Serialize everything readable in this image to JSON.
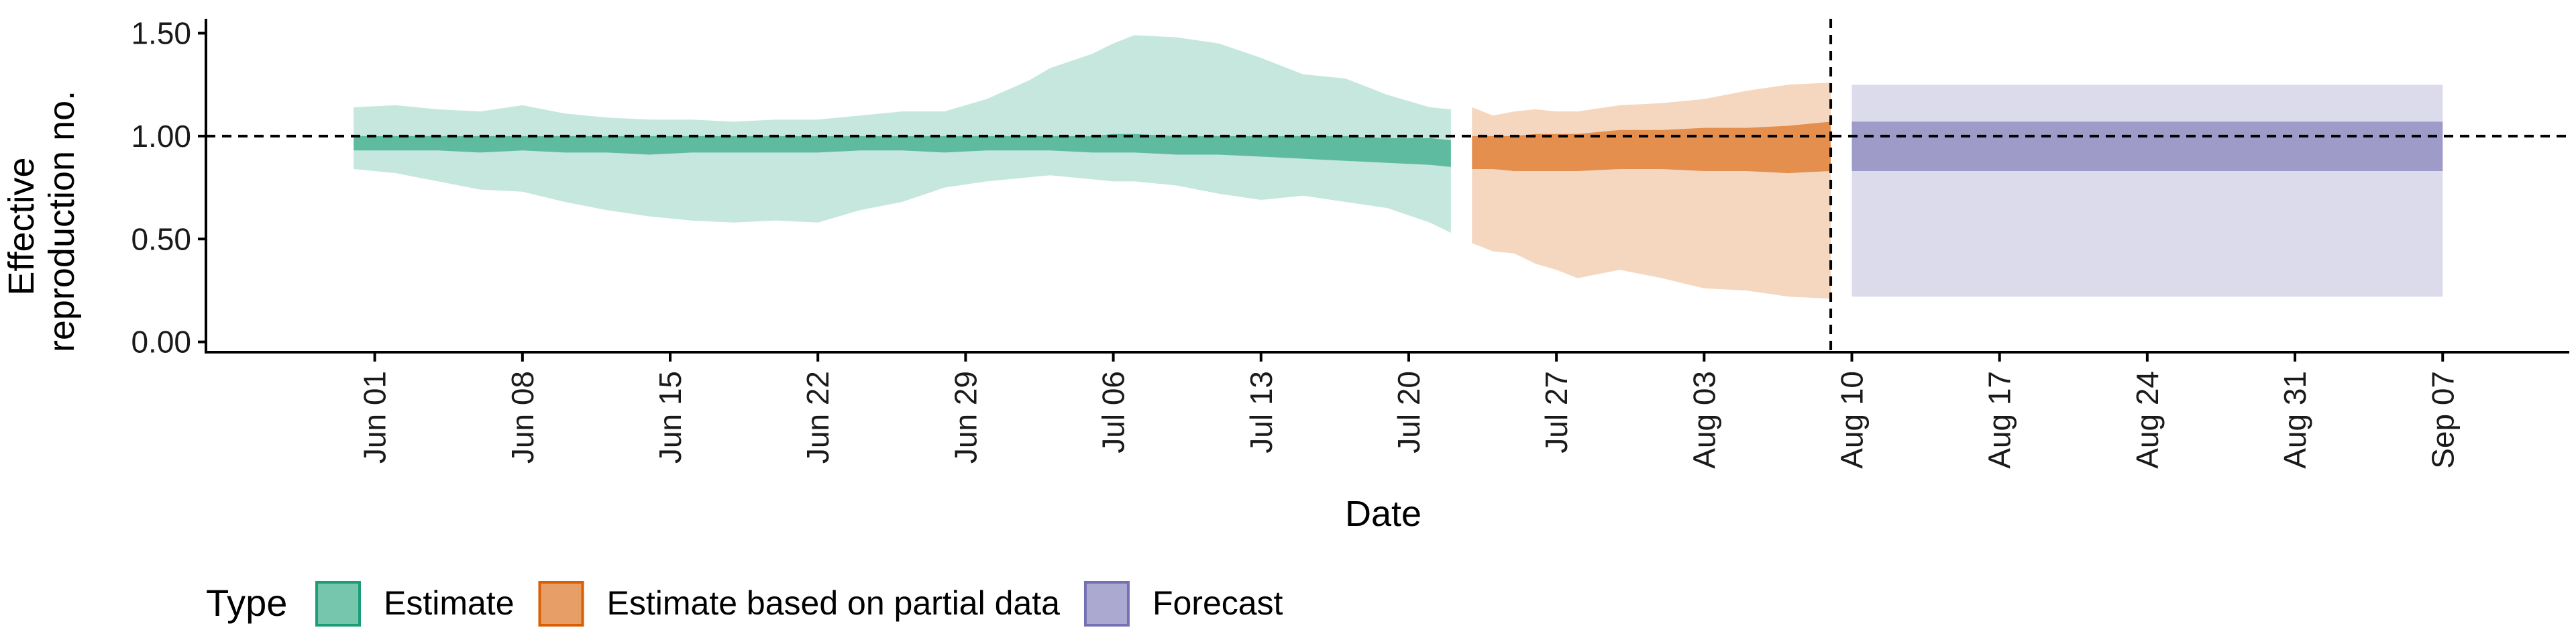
{
  "chart_data": {
    "type": "area",
    "xlabel": "Date",
    "ylabel": [
      "Effective",
      "reproduction no."
    ],
    "ylim": [
      -0.05,
      1.57
    ],
    "yticks": [
      0.0,
      0.5,
      1.0,
      1.5
    ],
    "ytick_labels": [
      "0.00",
      "0.50",
      "1.00",
      "1.50"
    ],
    "xlim": [
      "2020-05-24",
      "2020-09-13"
    ],
    "xticks": [
      "2020-06-01",
      "2020-06-08",
      "2020-06-15",
      "2020-06-22",
      "2020-06-29",
      "2020-07-06",
      "2020-07-13",
      "2020-07-20",
      "2020-07-27",
      "2020-08-03",
      "2020-08-10",
      "2020-08-17",
      "2020-08-24",
      "2020-08-31",
      "2020-09-07"
    ],
    "xtick_labels": [
      "Jun 01",
      "Jun 08",
      "Jun 15",
      "Jun 22",
      "Jun 29",
      "Jul 06",
      "Jul 13",
      "Jul 20",
      "Jul 27",
      "Aug 03",
      "Aug 10",
      "Aug 17",
      "Aug 24",
      "Aug 31",
      "Sep 07"
    ],
    "reference_line_y": 1.0,
    "forecast_date_line": "2020-08-09",
    "grid": false,
    "legend": {
      "title": "Type",
      "placement": "bottom-left",
      "entries": [
        "Estimate",
        "Estimate based on partial data",
        "Forecast"
      ]
    },
    "series": [
      {
        "name": "Estimate",
        "fill": "#1b9e77",
        "x": [
          "2020-05-31",
          "2020-06-02",
          "2020-06-04",
          "2020-06-06",
          "2020-06-08",
          "2020-06-10",
          "2020-06-12",
          "2020-06-14",
          "2020-06-16",
          "2020-06-18",
          "2020-06-20",
          "2020-06-22",
          "2020-06-24",
          "2020-06-26",
          "2020-06-28",
          "2020-06-30",
          "2020-07-02",
          "2020-07-03",
          "2020-07-05",
          "2020-07-06",
          "2020-07-07",
          "2020-07-09",
          "2020-07-11",
          "2020-07-13",
          "2020-07-15",
          "2020-07-17",
          "2020-07-19",
          "2020-07-21",
          "2020-07-22"
        ],
        "lower_90": [
          0.84,
          0.82,
          0.78,
          0.74,
          0.73,
          0.68,
          0.64,
          0.61,
          0.59,
          0.58,
          0.59,
          0.58,
          0.64,
          0.68,
          0.75,
          0.78,
          0.8,
          0.81,
          0.79,
          0.78,
          0.78,
          0.76,
          0.72,
          0.69,
          0.71,
          0.68,
          0.65,
          0.58,
          0.53
        ],
        "upper_90": [
          1.14,
          1.15,
          1.13,
          1.12,
          1.15,
          1.11,
          1.09,
          1.08,
          1.08,
          1.07,
          1.08,
          1.08,
          1.1,
          1.12,
          1.12,
          1.18,
          1.27,
          1.33,
          1.4,
          1.45,
          1.49,
          1.48,
          1.45,
          1.38,
          1.3,
          1.28,
          1.2,
          1.14,
          1.13
        ],
        "lower_50": [
          0.93,
          0.93,
          0.93,
          0.92,
          0.93,
          0.92,
          0.92,
          0.91,
          0.92,
          0.92,
          0.92,
          0.92,
          0.93,
          0.93,
          0.92,
          0.93,
          0.93,
          0.93,
          0.92,
          0.92,
          0.92,
          0.91,
          0.91,
          0.9,
          0.89,
          0.88,
          0.87,
          0.86,
          0.85
        ],
        "upper_50": [
          1.0,
          1.0,
          1.0,
          1.0,
          1.0,
          1.0,
          1.0,
          1.0,
          1.0,
          1.0,
          1.0,
          1.0,
          1.0,
          1.0,
          1.0,
          1.0,
          1.0,
          1.0,
          1.0,
          1.01,
          1.01,
          1.0,
          1.0,
          1.0,
          1.0,
          1.0,
          0.99,
          0.99,
          0.98
        ]
      },
      {
        "name": "Estimate based on partial data",
        "fill": "#d95f02",
        "x": [
          "2020-07-23",
          "2020-07-24",
          "2020-07-25",
          "2020-07-26",
          "2020-07-27",
          "2020-07-28",
          "2020-07-30",
          "2020-08-01",
          "2020-08-03",
          "2020-08-05",
          "2020-08-07",
          "2020-08-09"
        ],
        "lower_90": [
          0.48,
          0.44,
          0.43,
          0.38,
          0.35,
          0.31,
          0.35,
          0.31,
          0.26,
          0.25,
          0.22,
          0.21
        ],
        "upper_90": [
          1.14,
          1.1,
          1.12,
          1.13,
          1.12,
          1.12,
          1.15,
          1.16,
          1.18,
          1.22,
          1.25,
          1.26
        ],
        "lower_50": [
          0.84,
          0.84,
          0.83,
          0.83,
          0.83,
          0.83,
          0.84,
          0.84,
          0.83,
          0.83,
          0.82,
          0.83
        ],
        "upper_50": [
          1.0,
          1.0,
          1.0,
          1.01,
          1.01,
          1.01,
          1.03,
          1.03,
          1.04,
          1.04,
          1.05,
          1.07
        ]
      },
      {
        "name": "Forecast",
        "fill": "#7570b3",
        "x": [
          "2020-08-10",
          "2020-09-07"
        ],
        "lower_90": [
          0.22,
          0.22
        ],
        "upper_90": [
          1.25,
          1.25
        ],
        "lower_50": [
          0.83,
          0.83
        ],
        "upper_50": [
          1.07,
          1.07
        ]
      }
    ]
  }
}
